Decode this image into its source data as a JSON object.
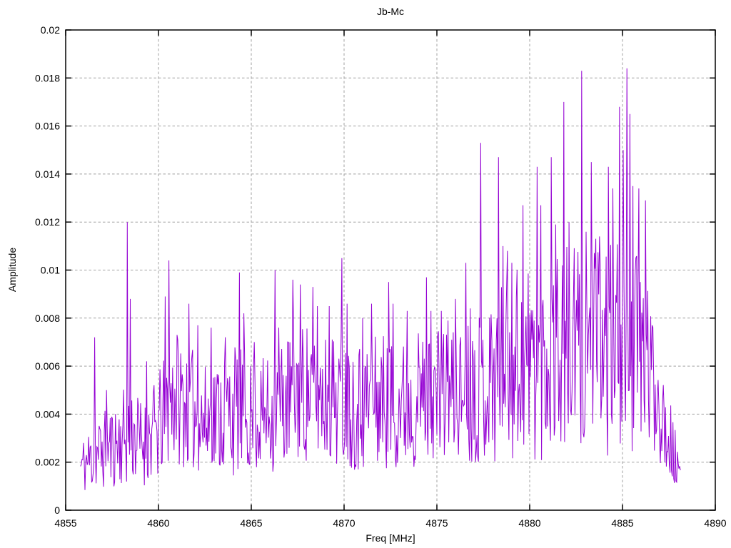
{
  "window": {
    "background": "#ffffff"
  },
  "chart_data": {
    "type": "line",
    "title": "Jb-Mc",
    "xlabel": "Freq [MHz]",
    "ylabel": "Amplitude",
    "series_name": "Jb-Mc",
    "legend": "none",
    "grid": true,
    "x_range": [
      4855,
      4890
    ],
    "y_range": [
      0,
      0.02
    ],
    "x_tick_values": [
      4855,
      4860,
      4865,
      4870,
      4875,
      4880,
      4885,
      4890
    ],
    "x_tick_labels": [
      "4855",
      "4860",
      "4865",
      "4870",
      "4875",
      "4880",
      "4885",
      "4890"
    ],
    "y_tick_values": [
      0,
      0.002,
      0.004,
      0.006,
      0.008,
      0.01,
      0.012,
      0.014,
      0.016,
      0.018,
      0.02
    ],
    "y_tick_labels": [
      "0",
      "0.002",
      "0.004",
      "0.006",
      "0.008",
      "0.01",
      "0.012",
      "0.014",
      "0.016",
      "0.018",
      "0.02"
    ],
    "line_color": "#9400D3",
    "grid_color": "#a0a0a0",
    "axis_color": "#000000",
    "noise_profile": {
      "seed": 11,
      "x_start": 4855.8,
      "x_end": 4888.1,
      "step": 0.04,
      "y_min_clamp": 0.0001,
      "envelope": [
        [
          4855.8,
          0.0018,
          0.0012
        ],
        [
          4856.6,
          0.0023,
          0.0016
        ],
        [
          4857.6,
          0.0027,
          0.0018
        ],
        [
          4858.4,
          0.0032,
          0.0022
        ],
        [
          4859.2,
          0.0028,
          0.0018
        ],
        [
          4860.0,
          0.0034,
          0.0023
        ],
        [
          4860.8,
          0.0048,
          0.0028
        ],
        [
          4861.6,
          0.0044,
          0.0027
        ],
        [
          4862.4,
          0.0036,
          0.0024
        ],
        [
          4863.2,
          0.004,
          0.0026
        ],
        [
          4864.2,
          0.0042,
          0.0028
        ],
        [
          4865.2,
          0.0038,
          0.0023
        ],
        [
          4866.2,
          0.0041,
          0.0026
        ],
        [
          4867.2,
          0.0048,
          0.0029
        ],
        [
          4868.4,
          0.005,
          0.003
        ],
        [
          4869.6,
          0.0047,
          0.0028
        ],
        [
          4870.8,
          0.0044,
          0.0028
        ],
        [
          4872.0,
          0.0046,
          0.0029
        ],
        [
          4873.2,
          0.0044,
          0.0028
        ],
        [
          4874.4,
          0.0048,
          0.0029
        ],
        [
          4875.6,
          0.0048,
          0.0028
        ],
        [
          4876.8,
          0.005,
          0.003
        ],
        [
          4878.0,
          0.0055,
          0.0036
        ],
        [
          4879.2,
          0.006,
          0.004
        ],
        [
          4880.4,
          0.0063,
          0.0043
        ],
        [
          4881.6,
          0.0065,
          0.0044
        ],
        [
          4882.8,
          0.0067,
          0.0045
        ],
        [
          4884.0,
          0.0068,
          0.0046
        ],
        [
          4885.2,
          0.007,
          0.0046
        ],
        [
          4886.0,
          0.0064,
          0.004
        ],
        [
          4886.8,
          0.005,
          0.0028
        ],
        [
          4887.5,
          0.0032,
          0.0018
        ],
        [
          4888.1,
          0.0012,
          0.0009
        ]
      ]
    },
    "peaks": [
      [
        4856.55,
        0.0072
      ],
      [
        4857.2,
        0.005
      ],
      [
        4858.32,
        0.012
      ],
      [
        4858.48,
        0.0088
      ],
      [
        4859.35,
        0.0062
      ],
      [
        4860.35,
        0.0089
      ],
      [
        4860.58,
        0.0104
      ],
      [
        4861.0,
        0.0073
      ],
      [
        4861.65,
        0.0086
      ],
      [
        4862.1,
        0.0077
      ],
      [
        4862.85,
        0.0076
      ],
      [
        4863.6,
        0.0072
      ],
      [
        4864.35,
        0.0099
      ],
      [
        4864.6,
        0.0082
      ],
      [
        4865.15,
        0.007
      ],
      [
        4866.27,
        0.01
      ],
      [
        4866.5,
        0.0076
      ],
      [
        4867.25,
        0.0096
      ],
      [
        4867.65,
        0.0094
      ],
      [
        4868.3,
        0.0093
      ],
      [
        4868.55,
        0.0085
      ],
      [
        4869.2,
        0.0085
      ],
      [
        4869.88,
        0.0105
      ],
      [
        4870.15,
        0.0086
      ],
      [
        4871.0,
        0.008
      ],
      [
        4871.5,
        0.0086
      ],
      [
        4872.4,
        0.0095
      ],
      [
        4872.65,
        0.0086
      ],
      [
        4873.4,
        0.0083
      ],
      [
        4874.45,
        0.0097
      ],
      [
        4874.7,
        0.0083
      ],
      [
        4875.25,
        0.0083
      ],
      [
        4875.6,
        0.0079
      ],
      [
        4876.0,
        0.0088
      ],
      [
        4876.55,
        0.0103
      ],
      [
        4876.8,
        0.0084
      ],
      [
        4877.35,
        0.0153
      ],
      [
        4878.3,
        0.0147
      ],
      [
        4878.55,
        0.011
      ],
      [
        4878.8,
        0.0108
      ],
      [
        4879.05,
        0.0103
      ],
      [
        4879.3,
        0.01
      ],
      [
        4879.65,
        0.0127
      ],
      [
        4880.4,
        0.0143
      ],
      [
        4880.62,
        0.0127
      ],
      [
        4881.15,
        0.0147
      ],
      [
        4881.4,
        0.0119
      ],
      [
        4881.85,
        0.017
      ],
      [
        4882.1,
        0.012
      ],
      [
        4882.8,
        0.0183
      ],
      [
        4883.05,
        0.0116
      ],
      [
        4883.3,
        0.0145
      ],
      [
        4883.75,
        0.0114
      ],
      [
        4884.25,
        0.0143
      ],
      [
        4884.5,
        0.0134
      ],
      [
        4884.85,
        0.0168
      ],
      [
        4885.05,
        0.015
      ],
      [
        4885.25,
        0.0184
      ],
      [
        4885.42,
        0.0165
      ],
      [
        4885.58,
        0.0135
      ],
      [
        4885.9,
        0.0134
      ],
      [
        4886.25,
        0.0129
      ],
      [
        4886.6,
        0.0077
      ]
    ]
  }
}
